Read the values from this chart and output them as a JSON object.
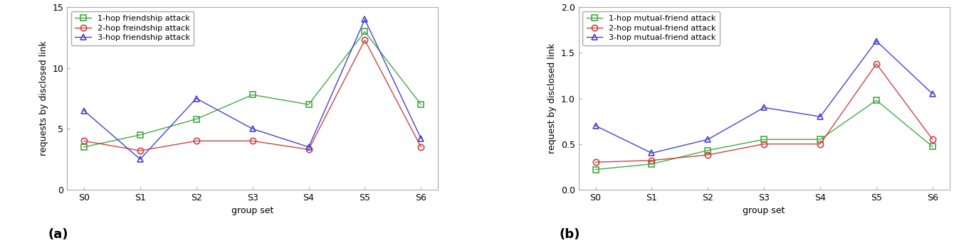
{
  "categories": [
    "S0",
    "S1",
    "S2",
    "S3",
    "S4",
    "S5",
    "S6"
  ],
  "chart_a": {
    "xlabel": "group set",
    "ylabel": "requests by disclosed link",
    "ylim": [
      0,
      15
    ],
    "yticks": [
      0,
      5,
      10,
      15
    ],
    "series": [
      {
        "label": "1-hop friendship attack",
        "color": "#44aa44",
        "marker": "s",
        "values": [
          3.5,
          4.5,
          5.8,
          7.8,
          7.0,
          13.0,
          7.0
        ]
      },
      {
        "label": "2-hop freindship attack",
        "color": "#cc4444",
        "marker": "o",
        "values": [
          4.0,
          3.2,
          4.0,
          4.0,
          3.3,
          12.3,
          3.5
        ]
      },
      {
        "label": "3-hop friendship attack",
        "color": "#4444cc",
        "marker": "^",
        "values": [
          6.5,
          2.5,
          7.5,
          5.0,
          3.5,
          14.0,
          4.2
        ]
      }
    ]
  },
  "chart_b": {
    "xlabel": "group set",
    "ylabel": "request by disclosed link",
    "ylim": [
      0,
      2
    ],
    "yticks": [
      0,
      0.5,
      1.0,
      1.5,
      2.0
    ],
    "series": [
      {
        "label": "1-hop mutual-friend attack",
        "color": "#44aa44",
        "marker": "s",
        "values": [
          0.22,
          0.28,
          0.43,
          0.55,
          0.55,
          0.98,
          0.47
        ]
      },
      {
        "label": "2-hop mutual-friend attack",
        "color": "#cc4444",
        "marker": "o",
        "values": [
          0.3,
          0.32,
          0.38,
          0.5,
          0.5,
          1.38,
          0.55
        ]
      },
      {
        "label": "3-hop mutual-friend attack",
        "color": "#4444cc",
        "marker": "^",
        "values": [
          0.7,
          0.4,
          0.55,
          0.9,
          0.8,
          1.63,
          1.05
        ]
      }
    ]
  },
  "background_color": "#ffffff",
  "axes_bg_color": "#ffffff",
  "label_a": "(a)",
  "label_b": "(b)",
  "marker_size": 6,
  "line_width": 1.0,
  "font_size": 9,
  "label_fontsize": 13
}
